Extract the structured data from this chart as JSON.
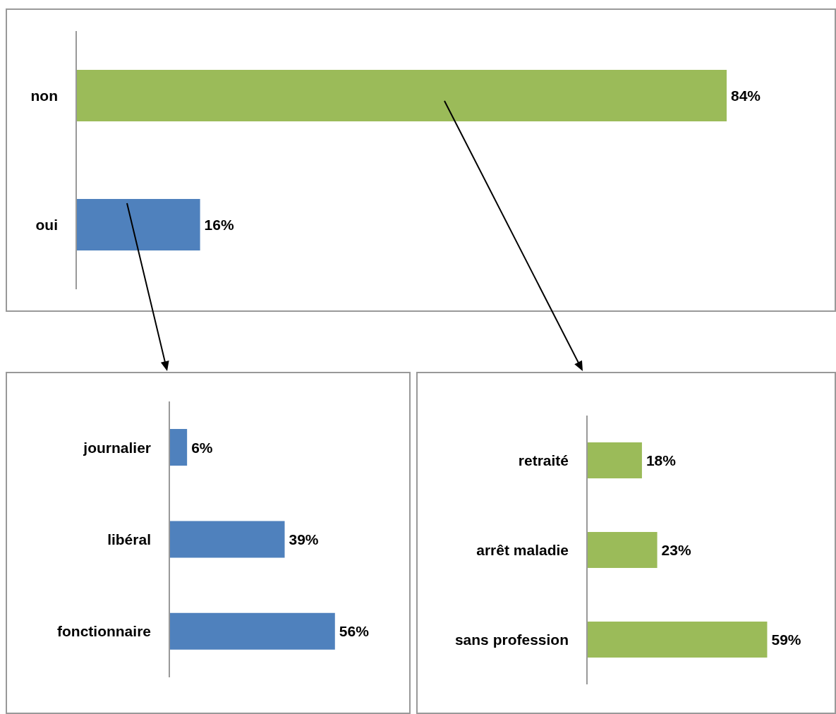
{
  "chart_data": [
    {
      "type": "bar",
      "orientation": "horizontal",
      "categories": [
        "non",
        "oui"
      ],
      "values": [
        84,
        16
      ],
      "colors": [
        "#9bbb59",
        "#4f81bd"
      ],
      "value_labels": [
        "84%",
        "16%"
      ]
    },
    {
      "type": "bar",
      "orientation": "horizontal",
      "categories": [
        "journalier",
        "libéral",
        "fonctionnaire"
      ],
      "values": [
        6,
        39,
        56
      ],
      "colors": [
        "#4f81bd",
        "#4f81bd",
        "#4f81bd"
      ],
      "value_labels": [
        "6%",
        "39%",
        "56%"
      ]
    },
    {
      "type": "bar",
      "orientation": "horizontal",
      "categories": [
        "retraité",
        "arrêt maladie",
        "sans profession"
      ],
      "values": [
        18,
        23,
        59
      ],
      "colors": [
        "#9bbb59",
        "#9bbb59",
        "#9bbb59"
      ],
      "value_labels": [
        "18%",
        "23%",
        "59%"
      ]
    }
  ]
}
